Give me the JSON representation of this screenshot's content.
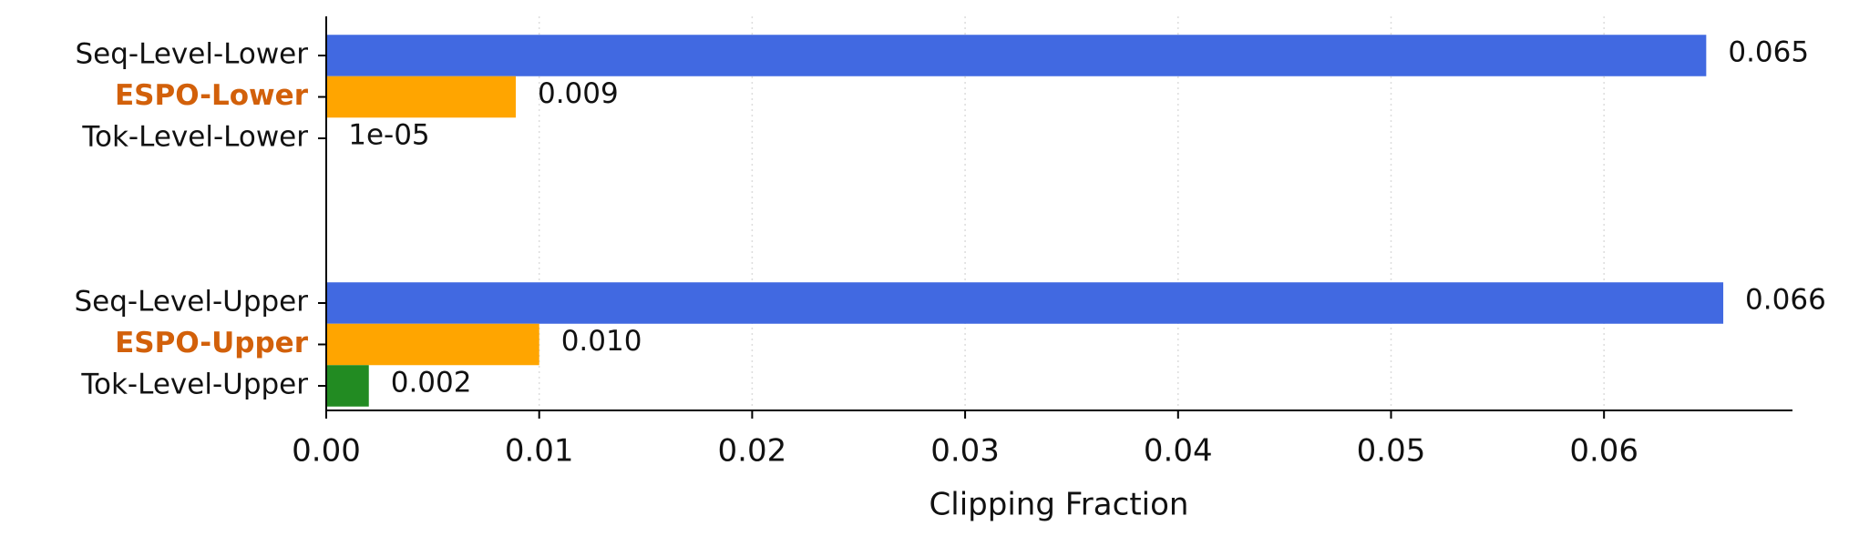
{
  "chart_data": {
    "type": "barh",
    "x_label": "Clipping Fraction",
    "categories": [
      "Seq-Level-Lower",
      "ESPO-Lower",
      "Tok-Level-Lower",
      "Seq-Level-Upper",
      "ESPO-Upper",
      "Tok-Level-Upper"
    ],
    "values": [
      0.0648,
      0.0089,
      1e-05,
      0.0656,
      0.01,
      0.002
    ],
    "value_labels": [
      "0.065",
      "0.009",
      "1e-05",
      "0.066",
      "0.010",
      "0.002"
    ],
    "colors": [
      "#4169e1",
      "#ffa500",
      "#228b22",
      "#4169e1",
      "#ffa500",
      "#228b22"
    ],
    "highlighted_labels": [
      false,
      true,
      false,
      false,
      true,
      false
    ],
    "highlight_color": "#d2600a",
    "xlim": [
      0,
      0.06885
    ],
    "xticks": [
      {
        "value": 0,
        "label": "0.00"
      },
      {
        "value": 0.01,
        "label": "0.01"
      },
      {
        "value": 0.02,
        "label": "0.02"
      },
      {
        "value": 0.03,
        "label": "0.03"
      },
      {
        "value": 0.04,
        "label": "0.04"
      },
      {
        "value": 0.05,
        "label": "0.05"
      },
      {
        "value": 0.06,
        "label": "0.06"
      }
    ],
    "grid": true
  }
}
